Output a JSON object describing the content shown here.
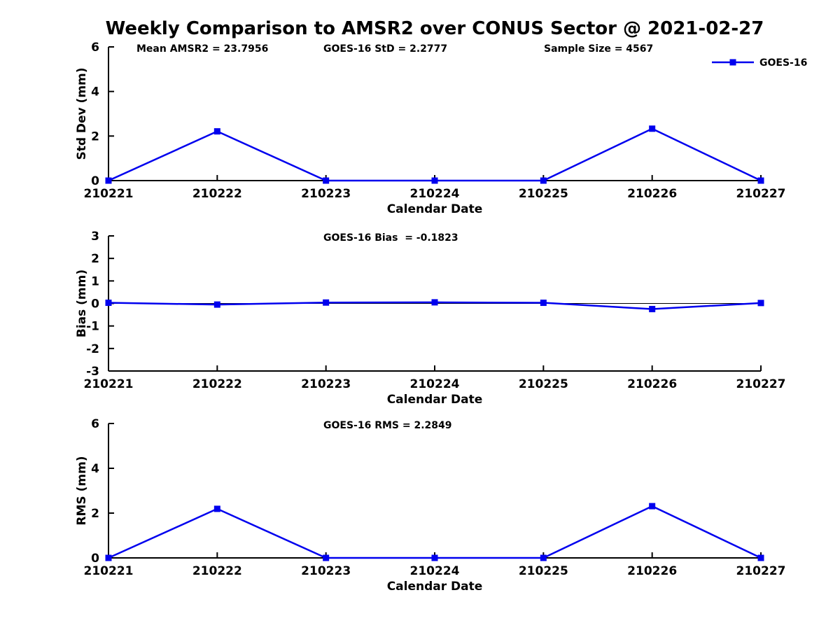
{
  "figure": {
    "title": "Weekly Comparison to AMSR2 over CONUS Sector @ 2021-02-27",
    "background": "#FFFFFF"
  },
  "colors": {
    "series": "#0000EE",
    "axis": "#000000",
    "text": "#000000"
  },
  "legend": {
    "label": "GOES-16"
  },
  "chart_data": [
    {
      "type": "line",
      "name": "std-dev",
      "ylabel": "Std Dev (mm)",
      "xlabel": "Calendar Date",
      "categories": [
        "210221",
        "210222",
        "210223",
        "210224",
        "210225",
        "210226",
        "210227"
      ],
      "series": [
        {
          "name": "GOES-16",
          "color": "#0000EE",
          "marker": "square",
          "values": [
            0,
            2.21,
            0,
            0,
            0,
            2.33,
            0
          ]
        }
      ],
      "ylim": [
        0,
        6
      ],
      "yticks": [
        0,
        2,
        4,
        6
      ],
      "grid": false,
      "legend_position": "top-right",
      "show_legend": true,
      "annotations": [
        {
          "text": "Mean AMSR2 = 23.7956"
        },
        {
          "text": "GOES-16 StD = 2.2777"
        },
        {
          "text": "Sample Size = 4567"
        }
      ]
    },
    {
      "type": "line",
      "name": "bias",
      "ylabel": "Bias (mm)",
      "xlabel": "Calendar Date",
      "categories": [
        "210221",
        "210222",
        "210223",
        "210224",
        "210225",
        "210226",
        "210227"
      ],
      "series": [
        {
          "name": "GOES-16",
          "color": "#0000EE",
          "marker": "square",
          "values": [
            0.03,
            -0.05,
            0.04,
            0.05,
            0.03,
            -0.25,
            0.02
          ]
        }
      ],
      "ylim": [
        -3,
        3
      ],
      "yticks": [
        -3,
        -2,
        -1,
        0,
        1,
        2,
        3
      ],
      "grid": false,
      "zero_line": true,
      "show_legend": false,
      "annotations": [
        {
          "text": "GOES-16 Bias  = -0.1823"
        }
      ]
    },
    {
      "type": "line",
      "name": "rms",
      "ylabel": "RMS (mm)",
      "xlabel": "Calendar Date",
      "categories": [
        "210221",
        "210222",
        "210223",
        "210224",
        "210225",
        "210226",
        "210227"
      ],
      "series": [
        {
          "name": "GOES-16",
          "color": "#0000EE",
          "marker": "square",
          "values": [
            0,
            2.19,
            0,
            0,
            0,
            2.31,
            0
          ]
        }
      ],
      "ylim": [
        0,
        6
      ],
      "yticks": [
        0,
        2,
        4,
        6
      ],
      "grid": false,
      "zero_line": false,
      "show_legend": false,
      "annotations": [
        {
          "text": "GOES-16 RMS = 2.2849"
        }
      ]
    }
  ]
}
